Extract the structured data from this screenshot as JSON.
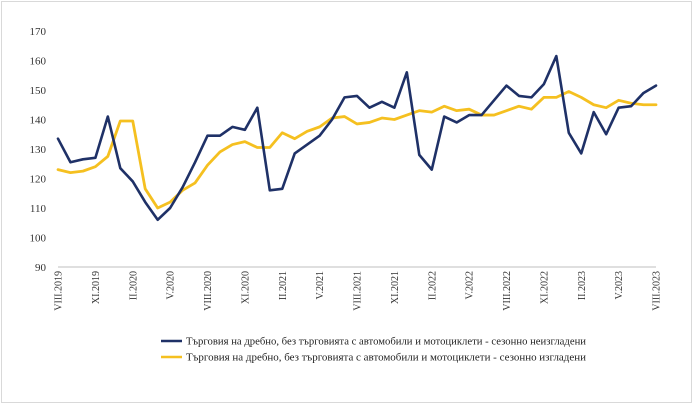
{
  "chart_data": {
    "type": "line",
    "title": "",
    "xlabel": "",
    "ylabel": "",
    "ylim": [
      90,
      170
    ],
    "yticks": [
      90,
      100,
      110,
      120,
      130,
      140,
      150,
      160,
      170
    ],
    "grid": false,
    "legend_position": "bottom",
    "tick_labels": [
      {
        "index": 0,
        "label": "VIII.2019"
      },
      {
        "index": 3,
        "label": "XI.2019"
      },
      {
        "index": 6,
        "label": "II.2020"
      },
      {
        "index": 9,
        "label": "V.2020"
      },
      {
        "index": 12,
        "label": "VIII.2020"
      },
      {
        "index": 15,
        "label": "XI.2020"
      },
      {
        "index": 18,
        "label": "II.2021"
      },
      {
        "index": 21,
        "label": "V.2021"
      },
      {
        "index": 24,
        "label": "VIII.2021"
      },
      {
        "index": 27,
        "label": "XI.2021"
      },
      {
        "index": 30,
        "label": "II.2022"
      },
      {
        "index": 33,
        "label": "V.2022"
      },
      {
        "index": 36,
        "label": "VIII.2022"
      },
      {
        "index": 39,
        "label": "XI.2022"
      },
      {
        "index": 42,
        "label": "II.2023"
      },
      {
        "index": 45,
        "label": "V.2023"
      },
      {
        "index": 48,
        "label": "VIII.2023"
      }
    ],
    "series": [
      {
        "name": "Търговия на дребно, без търговията с автомобили и мотоциклети - сезонно неизгладени",
        "color": "#1f3167",
        "values": [
          133.5,
          125.5,
          126.5,
          127,
          141,
          123.5,
          119,
          112,
          106,
          110,
          117,
          125.5,
          134.5,
          134.5,
          137.5,
          136.5,
          144,
          116,
          116.5,
          128.5,
          131.5,
          134.5,
          140,
          147.5,
          148,
          144,
          146,
          144,
          156,
          128,
          123,
          141,
          139,
          141.5,
          141.5,
          146.5,
          151.5,
          148,
          147.5,
          152,
          161.5,
          135.5,
          128.5,
          142.5,
          135,
          144,
          144.5,
          149,
          151.5
        ]
      },
      {
        "name": "Търговия на дребно, без търговията с автомобили и мотоциклети - сезонно изгладени",
        "color": "#f5c020",
        "values": [
          123,
          122,
          122.5,
          124,
          127.5,
          139.5,
          139.5,
          116.5,
          110,
          112,
          116,
          118.5,
          124.5,
          129,
          131.5,
          132.5,
          130.5,
          130.5,
          135.5,
          133.5,
          136,
          137.5,
          140.5,
          141,
          138.5,
          139,
          140.5,
          140,
          141.5,
          143,
          142.5,
          144.5,
          143,
          143.5,
          141.5,
          141.5,
          143,
          144.5,
          143.5,
          147.5,
          147.5,
          149.5,
          147.5,
          145,
          144,
          146.5,
          145.5,
          145,
          145
        ]
      }
    ]
  }
}
